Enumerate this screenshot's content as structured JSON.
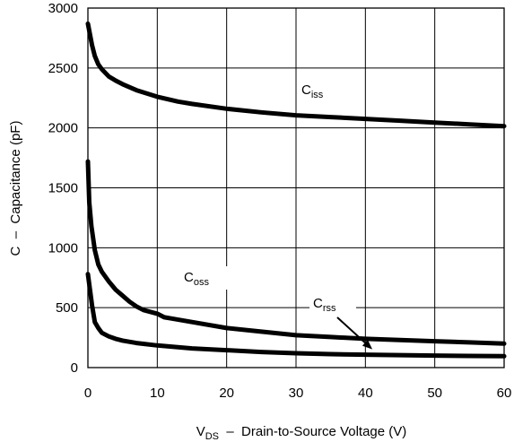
{
  "chart_data": {
    "type": "line",
    "x_axis": {
      "label_main": "V",
      "label_sub": "DS",
      "label_rest": "  –  Drain-to-Source Voltage (V)",
      "range": [
        0,
        60
      ],
      "ticks": [
        "0",
        "10",
        "20",
        "30",
        "40",
        "50",
        "60"
      ]
    },
    "y_axis": {
      "label": "C  –  Capacitance (pF)",
      "range": [
        0,
        3000
      ],
      "ticks": [
        "0",
        "500",
        "1000",
        "1500",
        "2000",
        "2500",
        "3000"
      ]
    },
    "grid": true,
    "series": [
      {
        "name": "Ciss",
        "label_main": "C",
        "label_sub": "iss",
        "x": [
          0,
          0.3,
          0.6,
          1,
          1.5,
          2,
          3,
          4,
          5,
          7,
          10,
          13,
          15,
          20,
          25,
          30,
          35,
          40,
          45,
          50,
          55,
          60
        ],
        "y": [
          2870,
          2780,
          2690,
          2600,
          2530,
          2490,
          2430,
          2395,
          2365,
          2315,
          2260,
          2220,
          2200,
          2160,
          2130,
          2105,
          2090,
          2075,
          2060,
          2045,
          2030,
          2015
        ]
      },
      {
        "name": "Coss",
        "label_main": "C",
        "label_sub": "oss",
        "x": [
          0,
          0.2,
          0.5,
          1,
          1.5,
          2,
          3,
          4,
          5,
          6,
          7,
          8,
          10,
          11,
          12,
          15,
          20,
          25,
          30,
          35,
          40,
          45,
          50,
          55,
          60
        ],
        "y": [
          1720,
          1380,
          1180,
          980,
          860,
          800,
          720,
          650,
          600,
          550,
          510,
          480,
          450,
          420,
          410,
          380,
          330,
          300,
          270,
          255,
          240,
          230,
          220,
          210,
          200
        ]
      },
      {
        "name": "Crss",
        "label_main": "C",
        "label_sub": "rss",
        "x": [
          0,
          0.3,
          0.6,
          1,
          1.5,
          2,
          3,
          4,
          5,
          7,
          10,
          15,
          20,
          25,
          30,
          35,
          40,
          45,
          50,
          55,
          60
        ],
        "y": [
          780,
          650,
          520,
          380,
          330,
          290,
          260,
          240,
          225,
          205,
          185,
          160,
          145,
          130,
          120,
          112,
          108,
          104,
          100,
          97,
          95
        ]
      }
    ],
    "annotation": {
      "target_series": "Crss",
      "points_to_x": 41
    }
  }
}
